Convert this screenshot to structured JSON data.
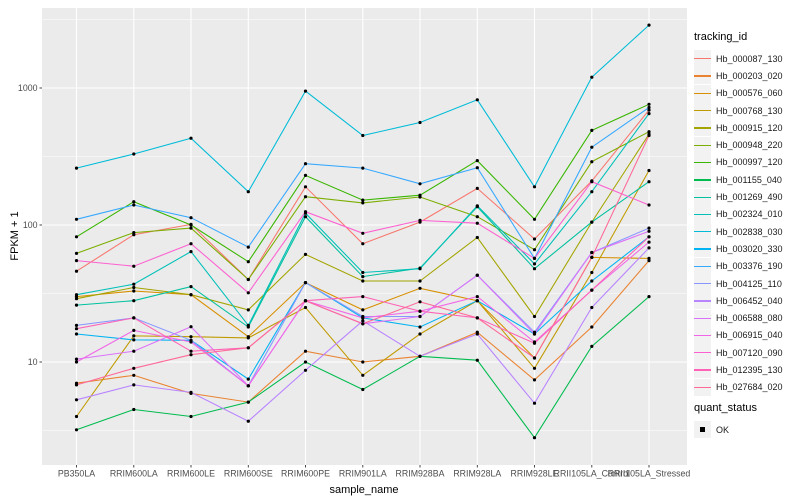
{
  "theme": {
    "panel_bg": "#EBEBEB",
    "grid_color": "#FFFFFF",
    "tick_label_color": "#4D4D4D",
    "axis_title_color": "#000000",
    "tick_mark_color": "#333333",
    "legend_key_bg": "#F2F2F2",
    "point_color": "#000000"
  },
  "chart_data": {
    "type": "line",
    "title": "",
    "xlabel": "sample_name",
    "ylabel": "FPKM + 1",
    "y_scale": "log10",
    "y_ticks": [
      10,
      100,
      1000
    ],
    "y_minor_ticks": [
      3.1623,
      31.623,
      316.23,
      3162.3
    ],
    "ylim": [
      1.8,
      3800
    ],
    "grid": "white major+minor on gray panel",
    "legend_position": "right",
    "legend_title": "tracking_id",
    "legend2": {
      "title": "quant_status",
      "items": [
        "OK"
      ]
    },
    "x_categories": [
      "PB350LA",
      "RRIM600LA",
      "RRIM600LE",
      "RRIM600SE",
      "RRIM600PE",
      "RRIM901LA",
      "RRIM928BA",
      "RRIM928LA",
      "RRIM928LE",
      "RRII105LA_Control",
      "RRII105LA_Stressed"
    ],
    "series": [
      {
        "name": "Hb_000087_130",
        "color": "#F8766D",
        "values": [
          46,
          85,
          101,
          40,
          190,
          73,
          105,
          185,
          79,
          210,
          690
        ]
      },
      {
        "name": "Hb_000203_020",
        "color": "#EA8331",
        "values": [
          7,
          8,
          5.9,
          5.1,
          12,
          10,
          11,
          16.5,
          7.4,
          18,
          55
        ]
      },
      {
        "name": "Hb_000576_060",
        "color": "#D89000",
        "values": [
          30,
          33,
          31,
          15.3,
          38,
          24,
          34.5,
          28,
          10.7,
          58,
          57
        ]
      },
      {
        "name": "Hb_000768_130",
        "color": "#C09B00",
        "values": [
          4,
          15.5,
          15.3,
          15,
          25,
          8,
          16,
          28,
          9,
          45,
          250
        ]
      },
      {
        "name": "Hb_000915_120",
        "color": "#A3A500",
        "values": [
          29,
          35,
          31,
          24,
          61,
          39,
          39,
          81,
          21.5,
          105,
          460
        ]
      },
      {
        "name": "Hb_000948_220",
        "color": "#7CAE00",
        "values": [
          62,
          88,
          95,
          40,
          161,
          145,
          160,
          115,
          66,
          290,
          480
        ]
      },
      {
        "name": "Hb_000997_120",
        "color": "#39B600",
        "values": [
          82,
          148,
          100,
          54,
          230,
          152,
          165,
          295,
          110,
          490,
          760
        ]
      },
      {
        "name": "Hb_001155_040",
        "color": "#00BB4E",
        "values": [
          3.2,
          4.5,
          4,
          5.1,
          10,
          6.3,
          11,
          10.3,
          2.8,
          13,
          30
        ]
      },
      {
        "name": "Hb_001269_490",
        "color": "#00C19F",
        "values": [
          26,
          28,
          35.5,
          18,
          115,
          42,
          48.5,
          136,
          48,
          105,
          207
        ]
      },
      {
        "name": "Hb_002324_010",
        "color": "#00C0B8",
        "values": [
          31,
          37,
          64,
          18.5,
          122,
          45,
          48,
          138,
          52,
          175,
          650
        ]
      },
      {
        "name": "Hb_002838_030",
        "color": "#00BCD8",
        "values": [
          260,
          330,
          430,
          175,
          950,
          450,
          560,
          820,
          190,
          1200,
          2880
        ]
      },
      {
        "name": "Hb_003020_330",
        "color": "#00B3F2",
        "values": [
          16,
          14.5,
          14.4,
          7.5,
          38,
          21,
          18,
          28,
          16,
          39,
          82
        ]
      },
      {
        "name": "Hb_003376_190",
        "color": "#35A8FF",
        "values": [
          110,
          140,
          113,
          69,
          280,
          260,
          200,
          262,
          57,
          370,
          720
        ]
      },
      {
        "name": "Hb_004125_110",
        "color": "#8897FF",
        "values": [
          18.5,
          21,
          14.4,
          6.7,
          38,
          21.5,
          21.5,
          43,
          16.5,
          63,
          95
        ]
      },
      {
        "name": "Hb_006452_040",
        "color": "#B984FF",
        "values": [
          5.3,
          6.8,
          6,
          3.7,
          8.7,
          20,
          11,
          16,
          5,
          25,
          68
        ]
      },
      {
        "name": "Hb_006588_080",
        "color": "#DC71FA",
        "values": [
          10.5,
          12,
          18.1,
          6.7,
          28,
          19,
          21.5,
          43,
          16,
          63,
          90
        ]
      },
      {
        "name": "Hb_006915_040",
        "color": "#F166E8",
        "values": [
          10,
          17,
          14,
          6.7,
          28,
          21,
          23.5,
          30,
          14,
          33.5,
          75
        ]
      },
      {
        "name": "Hb_007120_090",
        "color": "#FD61D1",
        "values": [
          55,
          50,
          73,
          32,
          125,
          87,
          108,
          103,
          57,
          207,
          140
        ]
      },
      {
        "name": "Hb_012395_130",
        "color": "#FF62B6",
        "values": [
          17.5,
          21,
          12,
          12.7,
          28,
          30,
          23.5,
          21,
          13.7,
          33.5,
          82
        ]
      },
      {
        "name": "Hb_027684_020",
        "color": "#FF6998",
        "values": [
          6.8,
          9,
          11.3,
          12.7,
          28,
          19,
          27.5,
          21,
          10.7,
          58,
          450
        ]
      }
    ]
  }
}
